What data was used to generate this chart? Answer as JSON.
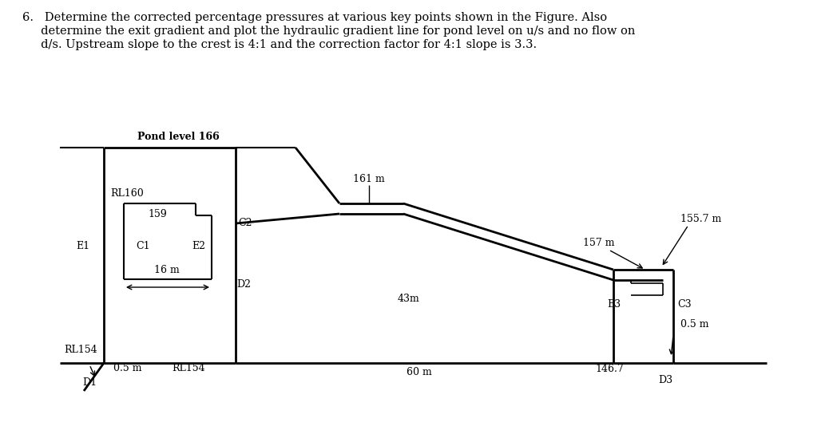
{
  "title_line1": "6.   Determine the corrected percentage pressures at various key points shown in the Figure. Also",
  "title_line2": "     determine the exit gradient and plot the hydraulic gradient line for pond level on u/s and no flow on",
  "title_line3": "     d/s. Upstream slope to the crest is 4:1 and the correction factor for 4:1 slope is 3.3.",
  "bg_color": "#ffffff",
  "line_color": "#000000"
}
